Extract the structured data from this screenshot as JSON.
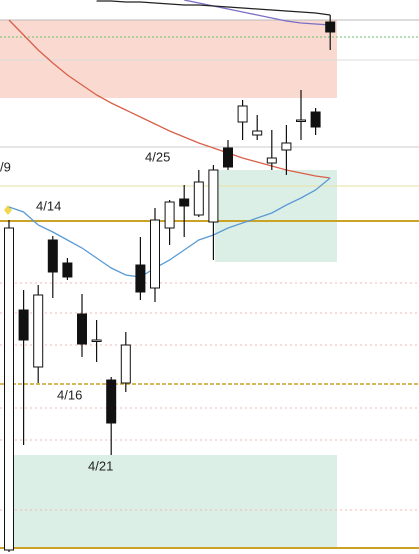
{
  "chart_data": {
    "type": "candlestick",
    "ylim": [
      0,
      554
    ],
    "open": [
      4,
      244,
      187,
      314,
      291,
      240,
      214,
      174,
      171,
      289,
      266,
      326,
      355,
      339,
      332,
      406,
      432,
      419,
      391,
      404,
      434,
      442,
      532
    ],
    "high": [
      334,
      264,
      269,
      318,
      296,
      260,
      234,
      177,
      222,
      317,
      346,
      354,
      369,
      384,
      389,
      414,
      454,
      439,
      424,
      429,
      464,
      446,
      539
    ],
    "low": [
      2,
      109,
      171,
      256,
      274,
      197,
      192,
      99,
      162,
      254,
      252,
      309,
      317,
      337,
      294,
      384,
      414,
      414,
      384,
      379,
      414,
      419,
      504
    ],
    "close": [
      326,
      214,
      259,
      282,
      277,
      210,
      214,
      131,
      209,
      262,
      334,
      352,
      348,
      372,
      384,
      387,
      448,
      423,
      396,
      411,
      434,
      427,
      522
    ],
    "overlays": [
      {
        "color": "#d9604a",
        "values": [
          534,
          519,
          504,
          491,
          479,
          469,
          459,
          451,
          444,
          437,
          430,
          423,
          417,
          411,
          406,
          401,
          396,
          392,
          388,
          384,
          381,
          378,
          376
        ]
      },
      {
        "color": "#5b9bd5",
        "values": [
          347,
          342,
          329,
          322,
          314,
          306,
          296,
          286,
          279,
          277,
          286,
          294,
          304,
          314,
          319,
          326,
          331,
          336,
          341,
          349,
          356,
          364,
          376
        ]
      },
      {
        "color": "#7a6fc4",
        "values": [
          null,
          null,
          null,
          null,
          null,
          null,
          null,
          null,
          null,
          null,
          null,
          null,
          554,
          551,
          548,
          545,
          542,
          539,
          536,
          533,
          531,
          530,
          529
        ]
      },
      {
        "color": "#222222",
        "values": [
          null,
          null,
          null,
          null,
          null,
          null,
          553,
          553,
          552,
          552,
          551,
          550,
          549,
          549,
          548,
          547,
          546,
          545,
          544,
          543,
          542,
          541,
          539
        ]
      }
    ],
    "annotations": [
      "/9",
      "4/14",
      "4/25",
      "4/16",
      "4/21"
    ]
  }
}
